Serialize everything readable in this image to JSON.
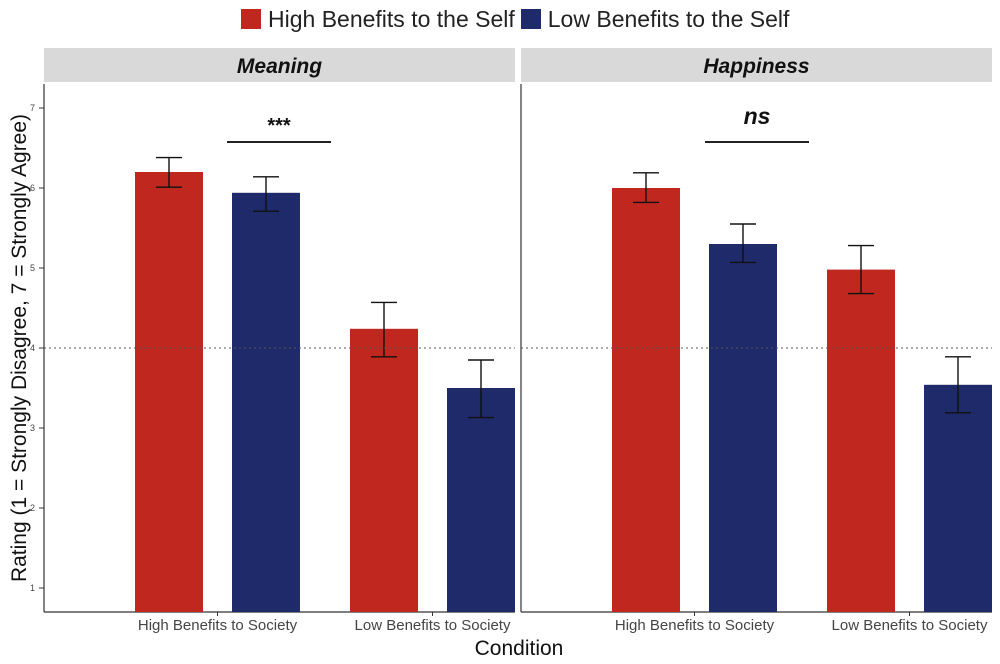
{
  "chart_data": {
    "type": "bar",
    "title": "",
    "xlabel": "Condition",
    "ylabel": "Rating (1 = Strongly Disagree, 7 = Strongly Agree)",
    "ylim": [
      0.7,
      7.3
    ],
    "yticks": [
      "1",
      "2",
      "3",
      "4",
      "5",
      "6",
      "7"
    ],
    "reference_line": 4,
    "categories": [
      "High Benefits to Society",
      "Low Benefits to Society"
    ],
    "legend": [
      {
        "name": "High Benefits to the Self",
        "color": "#c0281f"
      },
      {
        "name": "Low Benefits to the Self",
        "color": "#1f2a6b"
      }
    ],
    "panels": [
      {
        "title": "Meaning",
        "significance": "***",
        "series": [
          {
            "name": "High Benefits to the Self",
            "values": [
              6.2,
              4.24
            ],
            "error_low": [
              6.01,
              3.89
            ],
            "error_high": [
              6.38,
              4.57
            ]
          },
          {
            "name": "Low Benefits to the Self",
            "values": [
              5.94,
              3.5
            ],
            "error_low": [
              5.71,
              3.13
            ],
            "error_high": [
              6.14,
              3.85
            ]
          }
        ]
      },
      {
        "title": "Happiness",
        "significance": "ns",
        "series": [
          {
            "name": "High Benefits to the Self",
            "values": [
              6.0,
              4.98
            ],
            "error_low": [
              5.82,
              4.68
            ],
            "error_high": [
              6.19,
              5.28
            ]
          },
          {
            "name": "Low Benefits to the Self",
            "values": [
              5.3,
              3.54
            ],
            "error_low": [
              5.07,
              3.19
            ],
            "error_high": [
              5.55,
              3.89
            ]
          }
        ]
      }
    ]
  },
  "colors": {
    "high_self": "#c0281f",
    "low_self": "#1f2a6b",
    "strip_bg": "#d9d9d9",
    "axis": "#333333"
  }
}
